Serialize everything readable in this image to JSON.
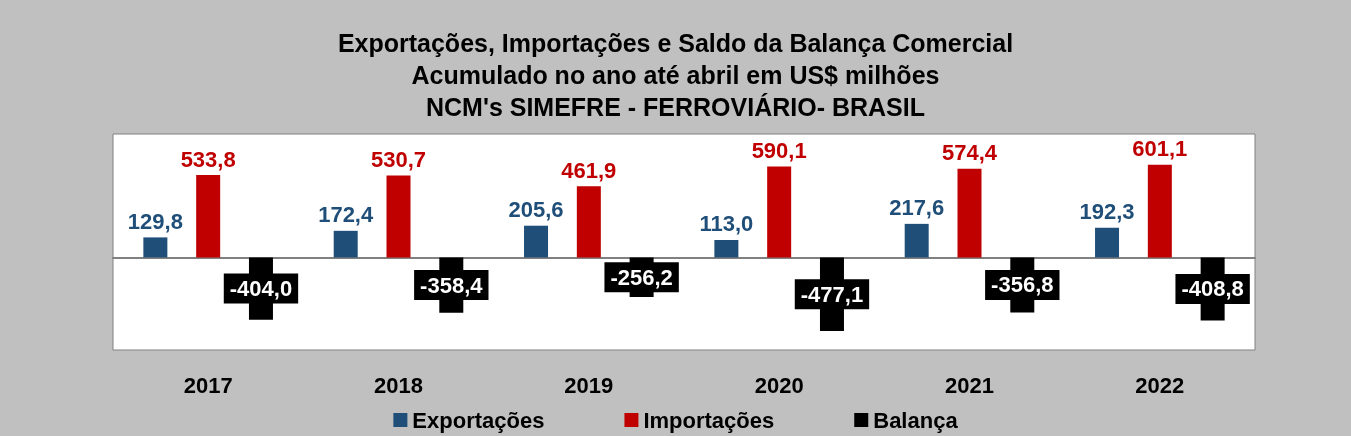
{
  "chart_data": {
    "type": "bar",
    "title": "Exportações, Importações e Saldo da Balança Comercial\nAcumulado no ano até abril em US$ milhões\nNCM's SIMEFRE - FERROVIÁRIO- BRASIL",
    "categories": [
      "2017",
      "2018",
      "2019",
      "2020",
      "2021",
      "2022"
    ],
    "series": [
      {
        "name": "Exportações",
        "color": "#1f4e79",
        "values": [
          129.8,
          172.4,
          205.6,
          113.0,
          217.6,
          192.3
        ],
        "value_labels": [
          "129,8",
          "172,4",
          "205,6",
          "113,0",
          "217,6",
          "192,3"
        ]
      },
      {
        "name": "Importações",
        "color": "#c00000",
        "values": [
          533.8,
          530.7,
          461.9,
          590.1,
          574.4,
          601.1
        ],
        "value_labels": [
          "533,8",
          "530,7",
          "461,9",
          "590,1",
          "574,4",
          "601,1"
        ]
      },
      {
        "name": "Balança",
        "color": "#000000",
        "values": [
          -404.0,
          -358.4,
          -256.2,
          -477.1,
          -356.8,
          -408.8
        ],
        "value_labels": [
          "-404,0",
          "-358,4",
          "-256,2",
          "-477,1",
          "-356,8",
          "-408,8"
        ]
      }
    ],
    "legend": "bottom"
  }
}
